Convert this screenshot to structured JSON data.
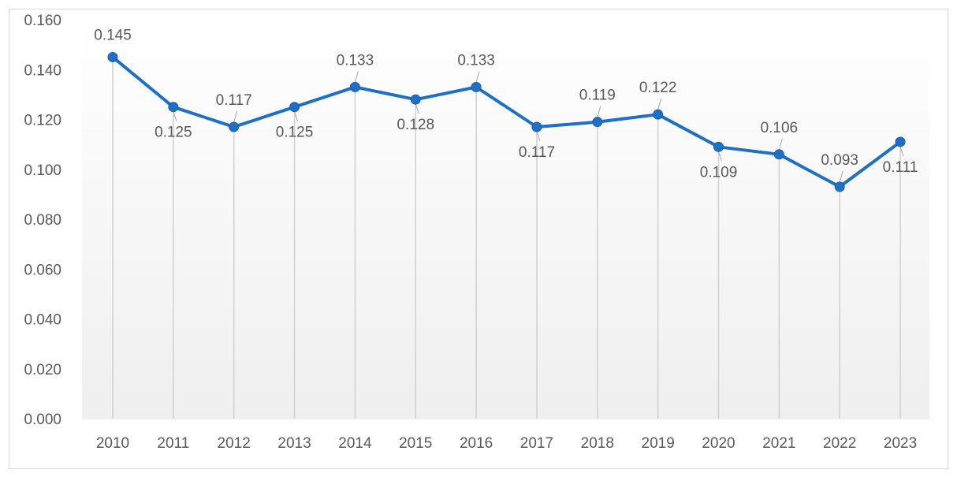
{
  "chart_data": {
    "type": "line",
    "title": "",
    "xlabel": "",
    "ylabel": "",
    "x": [
      "2010",
      "2011",
      "2012",
      "2013",
      "2014",
      "2015",
      "2016",
      "2017",
      "2018",
      "2019",
      "2020",
      "2021",
      "2022",
      "2023"
    ],
    "series": [
      {
        "values": [
          0.145,
          0.125,
          0.117,
          0.125,
          0.133,
          0.128,
          0.133,
          0.117,
          0.119,
          0.122,
          0.109,
          0.106,
          0.093,
          0.111
        ],
        "labels": [
          "0.145",
          "0.125",
          "0.117",
          "0.125",
          "0.133",
          "0.128",
          "0.133",
          "0.117",
          "0.119",
          "0.122",
          "0.109",
          "0.106",
          "0.093",
          "0.111"
        ],
        "label_position": [
          "above",
          "below",
          "above",
          "below",
          "above",
          "below",
          "above",
          "below",
          "above",
          "above",
          "below",
          "above",
          "above",
          "below"
        ],
        "color": "#1f6fc5"
      }
    ],
    "yticks": [
      "0.000",
      "0.020",
      "0.040",
      "0.060",
      "0.080",
      "0.100",
      "0.120",
      "0.140",
      "0.160"
    ],
    "ylim": [
      0,
      0.16
    ],
    "drop_lines": true,
    "grid": false,
    "legend": "none",
    "background_gradient": [
      "#ffffff",
      "#efefef"
    ]
  }
}
